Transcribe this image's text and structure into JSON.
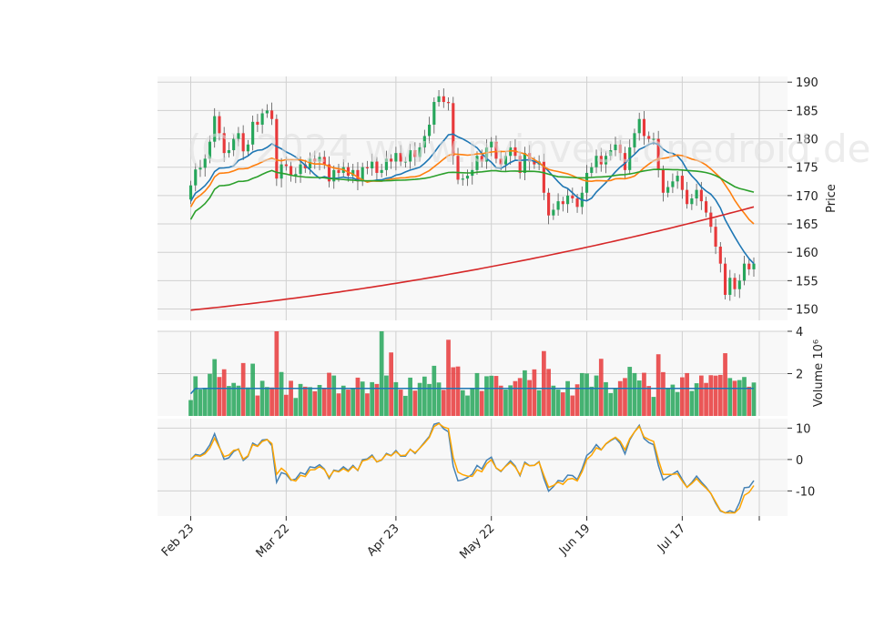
{
  "chart_data": [
    {
      "type": "candlestick",
      "panel": "price",
      "ylabel": "Price",
      "ylim": [
        148,
        191
      ],
      "yticks": [
        150,
        155,
        160,
        165,
        170,
        175,
        180,
        185,
        190
      ],
      "xticks": [
        "Feb 23",
        "Mar 22",
        "Apr 23",
        "May 22",
        "Jun 19",
        "Jul 17"
      ],
      "up_color": "#26a65b",
      "down_color": "#e8393b",
      "candles_close": [
        171.8,
        174.6,
        174.9,
        176.5,
        179.5,
        184.0,
        181.0,
        177.5,
        178.0,
        180.0,
        181.0,
        177.8,
        179.0,
        183.0,
        182.5,
        184.5,
        185.0,
        183.5,
        173.0,
        175.5,
        175.2,
        173.5,
        173.8,
        175.5,
        174.8,
        176.5,
        176.0,
        176.8,
        175.5,
        172.5,
        174.5,
        174.0,
        175.0,
        173.5,
        174.5,
        172.5,
        175.0,
        174.8,
        176.0,
        174.0,
        174.5,
        176.5,
        176.0,
        177.5,
        176.0,
        176.0,
        178.0,
        176.8,
        178.5,
        180.5,
        182.5,
        186.5,
        187.5,
        186.5,
        186.3,
        177.0,
        172.8,
        173.0,
        173.5,
        174.5,
        177.0,
        176.0,
        178.5,
        179.5,
        176.5,
        175.5,
        177.0,
        178.5,
        177.0,
        174.0,
        177.5,
        176.0,
        175.5,
        176.0,
        170.5,
        166.5,
        167.5,
        169.0,
        168.5,
        170.0,
        169.5,
        168.0,
        170.5,
        174.0,
        175.0,
        177.0,
        175.5,
        177.0,
        178.0,
        179.0,
        177.5,
        174.5,
        178.5,
        181.0,
        183.5,
        180.5,
        180.0,
        180.0,
        174.5,
        170.5,
        171.5,
        172.5,
        173.5,
        171.0,
        168.5,
        169.5,
        171.0,
        169.0,
        167.0,
        164.5,
        161.0,
        158.0,
        152.5,
        155.5,
        153.5,
        155.0,
        158.0,
        157.0,
        158.0
      ],
      "moving_averages": [
        {
          "color": "#1f77b4",
          "start": 169.0,
          "end": 158.0
        },
        {
          "color": "#ff7f0e",
          "start": 168.0,
          "end": 165.0
        },
        {
          "color": "#2ca02c",
          "start": 165.8,
          "end": 170.6
        },
        {
          "color": "#d62728",
          "start": 149.8,
          "end": 168.0
        }
      ],
      "watermark": "(C) 2024 www.pyinvest.onedroid.de"
    },
    {
      "type": "bar",
      "panel": "volume",
      "ylabel": "Volume  10⁶",
      "ylim": [
        0,
        4
      ],
      "yticks": [
        2,
        4
      ],
      "average_line_color": "#1f77b4"
    },
    {
      "type": "line",
      "panel": "oscillator",
      "ylim": [
        -18,
        13
      ],
      "yticks": [
        10,
        0,
        -10
      ],
      "series": [
        {
          "color": "#4682b4"
        },
        {
          "color": "#ffa500"
        }
      ]
    }
  ]
}
